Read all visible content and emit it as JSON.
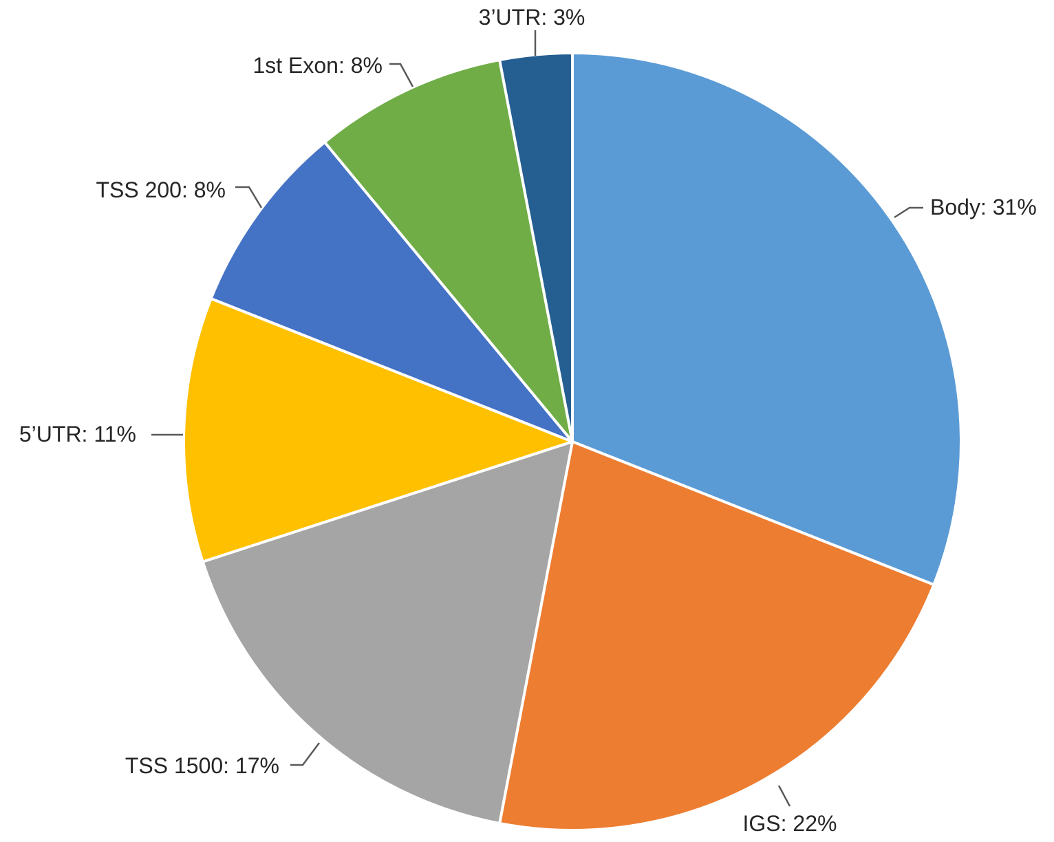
{
  "chart_data": {
    "type": "pie",
    "categories": [
      "Body",
      "IGS",
      "TSS 1500",
      "5’UTR",
      "TSS 200",
      "1st Exon",
      "3’UTR"
    ],
    "values": [
      31,
      22,
      17,
      11,
      8,
      8,
      3
    ],
    "labels": [
      "Body: 31%",
      "IGS: 22%",
      "TSS 1500: 17%",
      "5’UTR: 11%",
      "TSS 200: 8%",
      "1st Exon: 8%",
      "3’UTR: 3%"
    ],
    "colors": [
      "#5b9bd5",
      "#ed7d31",
      "#a5a5a5",
      "#ffc000",
      "#4472c4",
      "#70ad47",
      "#255e91"
    ],
    "start_angle": "12 o'clock",
    "direction": "clockwise",
    "legend": "none",
    "title": ""
  }
}
